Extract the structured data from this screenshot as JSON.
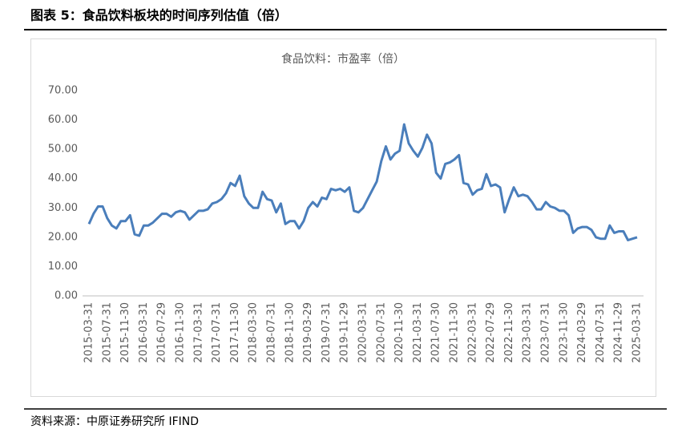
{
  "header": {
    "title": "图表 5：食品饮料板块的时间序列估值（倍）"
  },
  "source": "资料来源：中原证券研究所   IFIND",
  "chart_data": {
    "type": "line",
    "title": "食品饮料：市盈率（倍）",
    "categories": [
      "2015-03-31",
      null,
      null,
      null,
      "2015-07-31",
      null,
      null,
      null,
      "2015-11-30",
      null,
      null,
      null,
      "2016-03-31",
      null,
      null,
      null,
      "2016-07-29",
      null,
      null,
      null,
      "2016-11-30",
      null,
      null,
      null,
      "2017-03-31",
      null,
      null,
      null,
      "2017-07-31",
      null,
      null,
      null,
      "2017-11-30",
      null,
      null,
      null,
      "2018-03-30",
      null,
      null,
      null,
      "2018-07-31",
      null,
      null,
      null,
      "2018-11-30",
      null,
      null,
      null,
      "2019-03-29",
      null,
      null,
      null,
      "2019-07-31",
      null,
      null,
      null,
      "2019-11-29",
      null,
      null,
      null,
      "2020-03-31",
      null,
      null,
      null,
      "2020-07-31",
      null,
      null,
      null,
      "2020-11-30",
      null,
      null,
      null,
      "2021-03-31",
      null,
      null,
      null,
      "2021-07-30",
      null,
      null,
      null,
      "2021-11-30",
      null,
      null,
      null,
      "2022-03-31",
      null,
      null,
      null,
      "2022-07-29",
      null,
      null,
      null,
      "2022-11-30",
      null,
      null,
      null,
      "2023-03-31",
      null,
      null,
      null,
      "2023-07-31",
      null,
      null,
      null,
      "2023-11-30",
      null,
      null,
      null,
      "2024-03-29",
      null,
      null,
      null,
      "2024-07-31",
      null,
      null,
      null,
      "2024-11-29",
      null,
      null,
      null,
      "2025-03-31"
    ],
    "values": [
      24.5,
      28,
      30.5,
      30.5,
      26.5,
      24,
      23,
      25.5,
      25.5,
      27.5,
      21,
      20.5,
      24,
      24,
      25,
      26.5,
      28,
      28,
      27,
      28.5,
      29,
      28.5,
      26,
      27.5,
      29,
      29,
      29.5,
      31.5,
      32,
      33,
      35,
      38.5,
      37.5,
      41,
      34,
      31.5,
      30,
      30,
      35.5,
      33,
      32.5,
      28.5,
      31.5,
      24.5,
      25.5,
      25.5,
      23,
      25.5,
      30,
      32,
      30.5,
      33.5,
      33,
      36.5,
      36,
      36.5,
      35.5,
      37,
      29,
      28.5,
      30,
      33,
      36,
      39,
      46,
      51,
      46.5,
      48.5,
      49.5,
      58.5,
      52,
      49.5,
      47.5,
      50.5,
      55,
      52,
      42,
      40,
      45,
      45.5,
      46.5,
      48,
      38.5,
      38,
      34.5,
      36,
      36.5,
      41.5,
      37.5,
      38,
      37,
      28.5,
      33,
      37,
      34,
      34.5,
      34,
      32,
      29.5,
      29.5,
      32,
      30.5,
      30,
      29,
      29,
      27.5,
      21.5,
      23,
      23.5,
      23.5,
      22.5,
      20,
      19.5,
      19.5,
      24,
      21.5,
      22,
      22,
      19,
      19.5,
      20
    ],
    "color": "#4a7ebb",
    "ylim": [
      0,
      70
    ],
    "yticks": [
      {
        "value": 0,
        "label": "0.00"
      },
      {
        "value": 10,
        "label": "10.00"
      },
      {
        "value": 20,
        "label": "20.00"
      },
      {
        "value": 30,
        "label": "30.00"
      },
      {
        "value": 40,
        "label": "40.00"
      },
      {
        "value": 50,
        "label": "50.00"
      },
      {
        "value": 60,
        "label": "60.00"
      },
      {
        "value": 70,
        "label": "70.00"
      }
    ],
    "grid": false
  }
}
